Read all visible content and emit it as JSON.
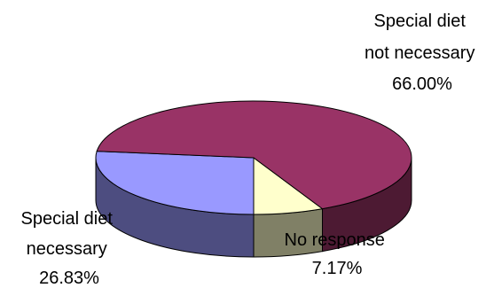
{
  "chart_data": {
    "type": "pie",
    "style": "3d",
    "title": "",
    "slices": [
      {
        "label_lines": [
          "Special diet",
          "not necessary"
        ],
        "value_text": "66.00%",
        "value": 66.0,
        "top_color": "#993366",
        "side_color": "#4d1a33"
      },
      {
        "label_lines": [
          "Special diet",
          "necessary"
        ],
        "value_text": "26.83%",
        "value": 26.83,
        "top_color": "#9999ff",
        "side_color": "#4d4d80"
      },
      {
        "label_lines": [
          "No response"
        ],
        "value_text": "7.17%",
        "value": 7.17,
        "top_color": "#ffffcc",
        "side_color": "#808066"
      }
    ],
    "legend": "none"
  },
  "colors": {
    "background": "#ffffff",
    "outline": "#000000"
  }
}
